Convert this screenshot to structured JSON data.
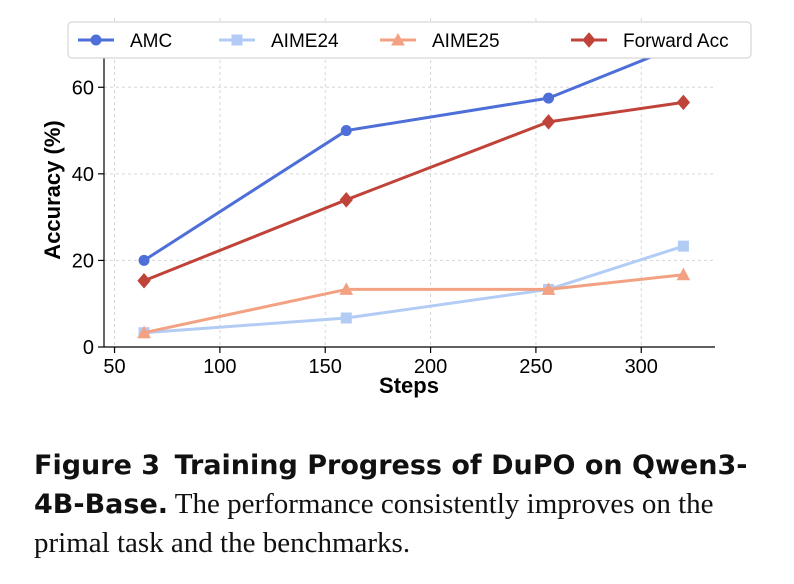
{
  "chart_data": {
    "type": "line",
    "title": "",
    "xlabel": "Steps",
    "ylabel": "Accuracy (%)",
    "xlim": [
      45,
      335
    ],
    "ylim": [
      0,
      76
    ],
    "xticks": [
      50,
      100,
      150,
      200,
      250,
      300
    ],
    "yticks": [
      0,
      20,
      40,
      60
    ],
    "grid": true,
    "legend_position": "top",
    "x": [
      64,
      160,
      256,
      320
    ],
    "series": [
      {
        "name": "AMC",
        "values": [
          20.0,
          50.0,
          57.5,
          70.0
        ],
        "color": "#4f6fd8",
        "marker": "circle"
      },
      {
        "name": "AIME24",
        "values": [
          3.3,
          6.7,
          13.3,
          23.3
        ],
        "color": "#b3ccf5",
        "marker": "square"
      },
      {
        "name": "AIME25",
        "values": [
          3.3,
          13.3,
          13.3,
          16.7
        ],
        "color": "#f2a283",
        "marker": "triangle"
      },
      {
        "name": "Forward Acc",
        "values": [
          15.3,
          34.0,
          52.0,
          56.5
        ],
        "color": "#c0433a",
        "marker": "diamond"
      }
    ]
  },
  "caption": {
    "label": "Figure 3",
    "title": "Training Progress of DuPO on Qwen3-4B-Base.",
    "text": "The performance consistently improves on the primal task and the benchmarks."
  }
}
